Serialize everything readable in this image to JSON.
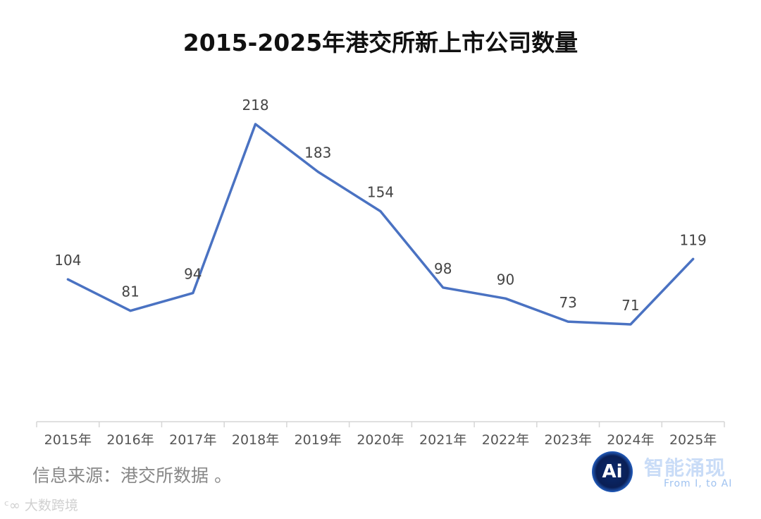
{
  "chart_data": {
    "type": "line",
    "title": "2015-2025年港交所新上市公司数量",
    "categories": [
      "2015年",
      "2016年",
      "2017年",
      "2018年",
      "2019年",
      "2020年",
      "2021年",
      "2022年",
      "2023年",
      "2024年",
      "2025年"
    ],
    "values": [
      104,
      81,
      94,
      218,
      183,
      154,
      98,
      90,
      73,
      71,
      119
    ],
    "xlabel": "",
    "ylabel": "",
    "ylim": [
      0,
      250
    ],
    "grid": false,
    "data_labels": true,
    "line_color": "#4a72c2"
  },
  "source_note": "信息来源：港交所数据 。",
  "watermark_left": "大数跨境",
  "logo": {
    "badge_text": "Ai",
    "name_cn": "智能涌现",
    "tagline": "From I, to AI"
  }
}
